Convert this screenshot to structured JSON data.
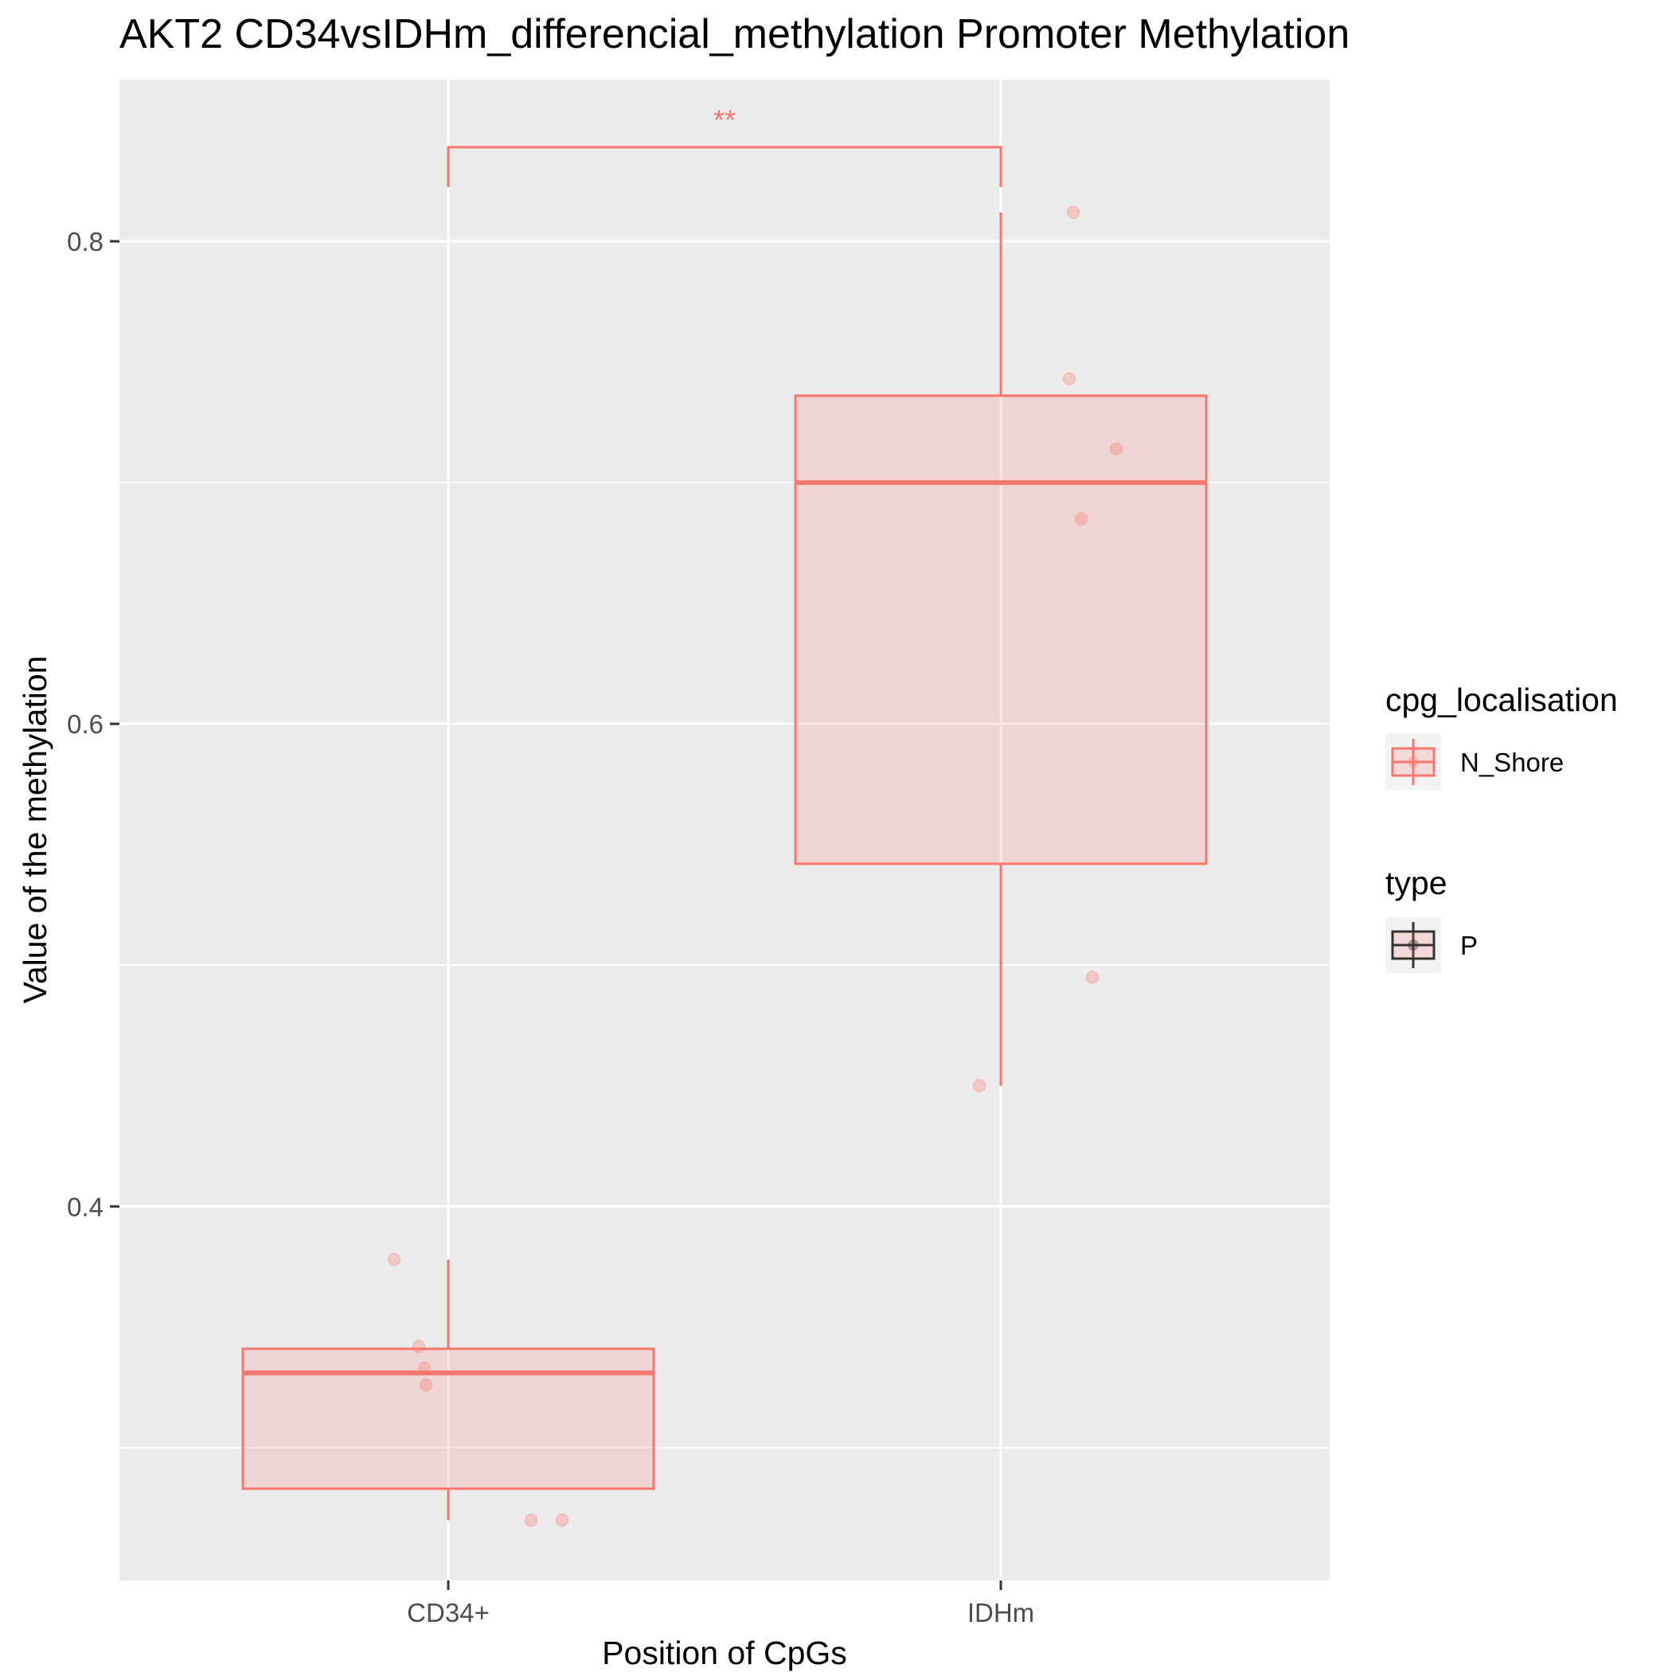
{
  "chart_data": {
    "type": "box",
    "title": "AKT2 CD34vsIDHm_differencial_methylation Promoter Methylation",
    "xlabel": "Position of CpGs",
    "ylabel": "Value of the methylation",
    "categories": [
      "CD34+",
      "IDHm"
    ],
    "ylim": [
      0.245,
      0.867
    ],
    "y_ticks": [
      0.4,
      0.6,
      0.8
    ],
    "y_tick_labels": [
      "0.4",
      "0.6",
      "0.8"
    ],
    "y_minor_ticks": [
      0.3,
      0.5,
      0.7
    ],
    "grid": true,
    "boxes": [
      {
        "category": "CD34+",
        "whisker_low": 0.27,
        "q1": 0.283,
        "median": 0.331,
        "q3": 0.341,
        "whisker_high": 0.378,
        "points": [
          0.378,
          0.342,
          0.333,
          0.326,
          0.27,
          0.27
        ]
      },
      {
        "category": "IDHm",
        "whisker_low": 0.45,
        "q1": 0.542,
        "median": 0.7,
        "q3": 0.736,
        "whisker_high": 0.812,
        "points": [
          0.812,
          0.743,
          0.714,
          0.685,
          0.495,
          0.45
        ]
      }
    ],
    "significance": {
      "label": "**",
      "from": "CD34+",
      "to": "IDHm",
      "y": 0.839
    },
    "legend": {
      "placement": "right",
      "groups": [
        {
          "title": "cpg_localisation",
          "items": [
            {
              "label": "N_Shore",
              "color": "#F8766D"
            }
          ]
        },
        {
          "title": "type",
          "items": [
            {
              "label": "P",
              "color": "#333333"
            }
          ]
        }
      ]
    },
    "colors": {
      "series": "#F8766D",
      "box_fill": "#F8766D",
      "panel": "#EBEBEB",
      "grid": "#FFFFFF"
    }
  }
}
